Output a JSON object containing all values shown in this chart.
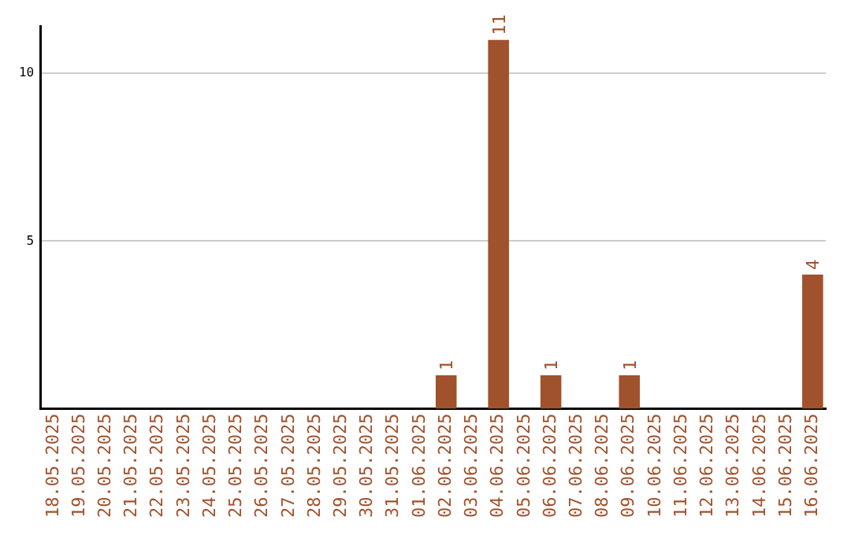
{
  "chart_data": {
    "type": "bar",
    "categories": [
      "18.05.2025",
      "19.05.2025",
      "20.05.2025",
      "21.05.2025",
      "22.05.2025",
      "23.05.2025",
      "24.05.2025",
      "25.05.2025",
      "26.05.2025",
      "27.05.2025",
      "28.05.2025",
      "29.05.2025",
      "30.05.2025",
      "31.05.2025",
      "01.06.2025",
      "02.06.2025",
      "03.06.2025",
      "04.06.2025",
      "05.06.2025",
      "06.06.2025",
      "07.06.2025",
      "08.06.2025",
      "09.06.2025",
      "10.06.2025",
      "11.06.2025",
      "12.06.2025",
      "13.06.2025",
      "14.06.2025",
      "15.06.2025",
      "16.06.2025"
    ],
    "values": [
      0,
      0,
      0,
      0,
      0,
      0,
      0,
      0,
      0,
      0,
      0,
      0,
      0,
      0,
      0,
      1,
      0,
      11,
      0,
      1,
      0,
      0,
      1,
      0,
      0,
      0,
      0,
      0,
      0,
      4
    ],
    "value_labels": [
      null,
      null,
      null,
      null,
      null,
      null,
      null,
      null,
      null,
      null,
      null,
      null,
      null,
      null,
      null,
      "1",
      null,
      "11",
      null,
      "1",
      null,
      null,
      "1",
      null,
      null,
      null,
      null,
      null,
      null,
      "4"
    ],
    "color": "#a0522d",
    "ylim": [
      0,
      11.4
    ],
    "yticks": [
      5,
      10
    ],
    "grid": "y"
  }
}
